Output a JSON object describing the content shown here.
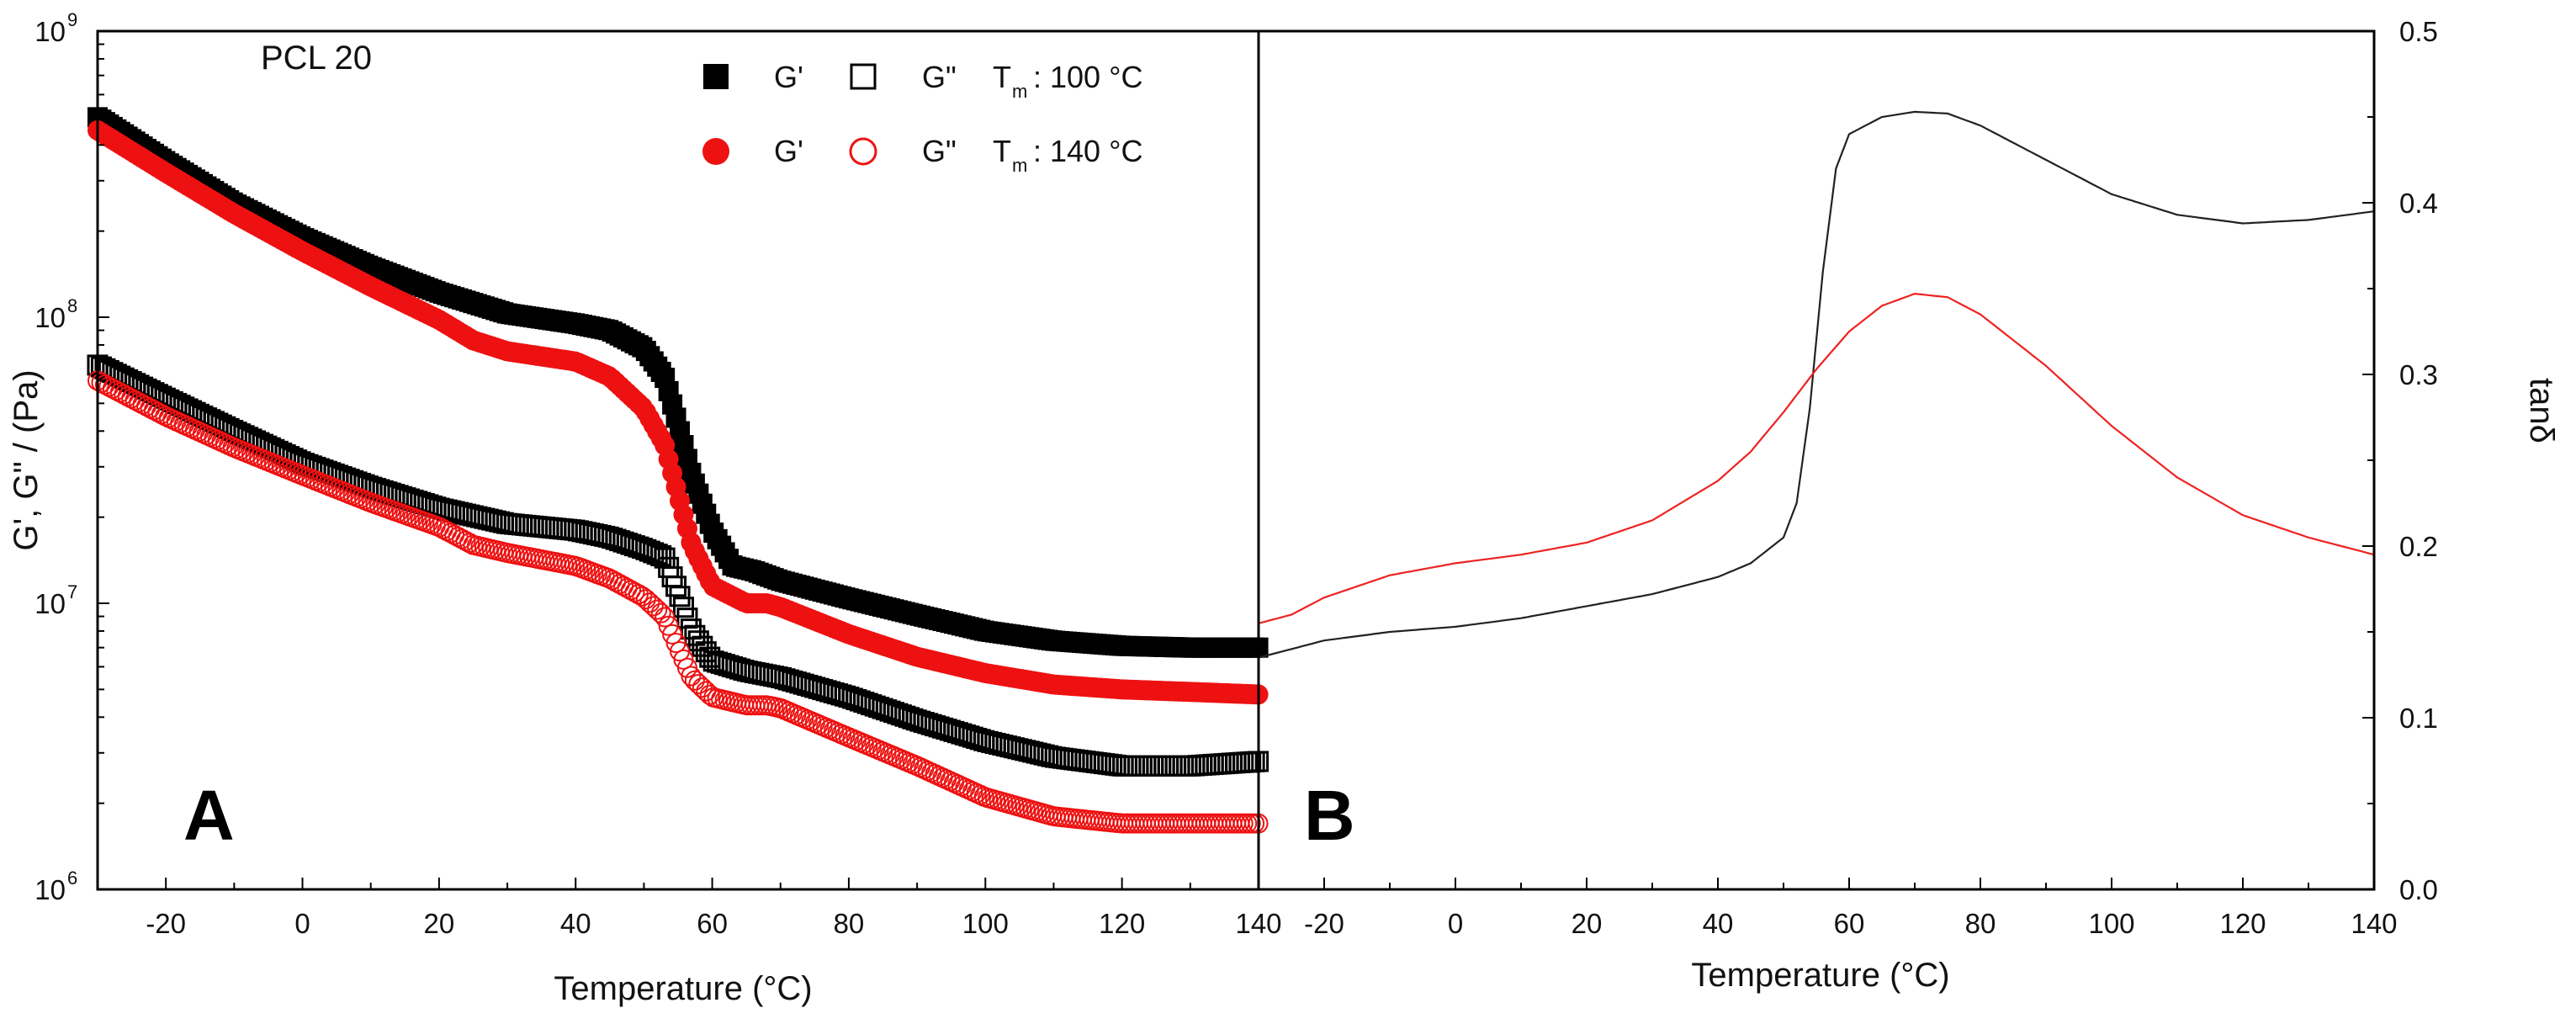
{
  "chart_data": [
    {
      "panel": "A",
      "type": "scatter",
      "annotation": "PCL 20",
      "panel_label": "A",
      "xlabel": "Temperature (°C)",
      "ylabel": "G', G\" / (Pa)",
      "yscale": "log",
      "xlim": [
        -30,
        140
      ],
      "ylim": [
        1000000,
        1000000000
      ],
      "x_ticks": [
        -20,
        0,
        20,
        40,
        60,
        80,
        100,
        120,
        140
      ],
      "x_tick_labels": [
        "-20",
        "0",
        "20",
        "40",
        "60",
        "80",
        "100",
        "120",
        "140"
      ],
      "y_ticks": [
        1000000,
        10000000,
        100000000,
        1000000000
      ],
      "y_tick_labels": [
        {
          "base": "10",
          "exp": "6"
        },
        {
          "base": "10",
          "exp": "7"
        },
        {
          "base": "10",
          "exp": "8"
        },
        {
          "base": "10",
          "exp": "9"
        }
      ],
      "legend": {
        "rows": [
          {
            "g1": "G'",
            "g2": "G\"",
            "tm_prefix": "T",
            "tm_sub": "m",
            "tm_value": ": 100 °C",
            "color": "#000000",
            "marker": "square"
          },
          {
            "g1": "G'",
            "g2": "G\"",
            "tm_prefix": "T",
            "tm_sub": "m",
            "tm_value": ": 140 °C",
            "color": "#ee1111",
            "marker": "circle"
          }
        ]
      },
      "series": [
        {
          "name": "G' Tm 100 °C",
          "color": "#000000",
          "marker": "square",
          "filled": true,
          "points": [
            [
              -30,
              500000000
            ],
            [
              -20,
              350000000
            ],
            [
              -10,
              250000000
            ],
            [
              0,
              190000000
            ],
            [
              10,
              150000000
            ],
            [
              20,
              122000000
            ],
            [
              30,
              103000000
            ],
            [
              40,
              95000000
            ],
            [
              45,
              90000000
            ],
            [
              50,
              78000000
            ],
            [
              53,
              62000000
            ],
            [
              55,
              42000000
            ],
            [
              57,
              28000000
            ],
            [
              60,
              18000000
            ],
            [
              63,
              13500000
            ],
            [
              66,
              13000000
            ],
            [
              70,
              12000000
            ],
            [
              80,
              10400000
            ],
            [
              90,
              9100000
            ],
            [
              100,
              8000000
            ],
            [
              110,
              7400000
            ],
            [
              120,
              7100000
            ],
            [
              130,
              7000000
            ],
            [
              140,
              7000000
            ]
          ]
        },
        {
          "name": "G\" Tm 100 °C",
          "color": "#000000",
          "marker": "square",
          "filled": false,
          "points": [
            [
              -30,
              68000000
            ],
            [
              -20,
              52000000
            ],
            [
              -10,
              40000000
            ],
            [
              0,
              31000000
            ],
            [
              10,
              25500000
            ],
            [
              20,
              21500000
            ],
            [
              30,
              19000000
            ],
            [
              40,
              18000000
            ],
            [
              45,
              17000000
            ],
            [
              50,
              15500000
            ],
            [
              53,
              14500000
            ],
            [
              55,
              11000000
            ],
            [
              57,
              8000000
            ],
            [
              60,
              6300000
            ],
            [
              65,
              5800000
            ],
            [
              70,
              5500000
            ],
            [
              80,
              4700000
            ],
            [
              90,
              3900000
            ],
            [
              100,
              3300000
            ],
            [
              110,
              2900000
            ],
            [
              120,
              2700000
            ],
            [
              130,
              2700000
            ],
            [
              140,
              2800000
            ]
          ]
        },
        {
          "name": "G' Tm 140 °C",
          "color": "#ee1111",
          "marker": "circle",
          "filled": true,
          "points": [
            [
              -30,
              450000000
            ],
            [
              -20,
              320000000
            ],
            [
              -10,
              230000000
            ],
            [
              0,
              170000000
            ],
            [
              10,
              128000000
            ],
            [
              20,
              98000000
            ],
            [
              25,
              83000000
            ],
            [
              30,
              76000000
            ],
            [
              40,
              70000000
            ],
            [
              45,
              62000000
            ],
            [
              50,
              48000000
            ],
            [
              53,
              36000000
            ],
            [
              55,
              24000000
            ],
            [
              57,
              16000000
            ],
            [
              60,
              11500000
            ],
            [
              65,
              10000000
            ],
            [
              68,
              10000000
            ],
            [
              70,
              9700000
            ],
            [
              80,
              7800000
            ],
            [
              90,
              6500000
            ],
            [
              100,
              5700000
            ],
            [
              110,
              5200000
            ],
            [
              120,
              5000000
            ],
            [
              130,
              4900000
            ],
            [
              140,
              4800000
            ]
          ]
        },
        {
          "name": "G\" Tm 140 °C",
          "color": "#ee1111",
          "marker": "circle",
          "filled": false,
          "points": [
            [
              -30,
              60000000
            ],
            [
              -20,
              45000000
            ],
            [
              -10,
              35000000
            ],
            [
              0,
              28000000
            ],
            [
              10,
              22500000
            ],
            [
              20,
              18500000
            ],
            [
              25,
              16000000
            ],
            [
              30,
              15000000
            ],
            [
              40,
              13500000
            ],
            [
              45,
              12200000
            ],
            [
              50,
              10500000
            ],
            [
              53,
              9000000
            ],
            [
              55,
              7000000
            ],
            [
              57,
              5500000
            ],
            [
              60,
              4700000
            ],
            [
              65,
              4400000
            ],
            [
              68,
              4400000
            ],
            [
              70,
              4300000
            ],
            [
              80,
              3400000
            ],
            [
              90,
              2700000
            ],
            [
              100,
              2100000
            ],
            [
              110,
              1800000
            ],
            [
              120,
              1700000
            ],
            [
              130,
              1700000
            ],
            [
              140,
              1700000
            ]
          ]
        }
      ]
    },
    {
      "panel": "B",
      "type": "line",
      "panel_label": "B",
      "xlabel": "Temperature (°C)",
      "ylabel": "tanδ",
      "xlim": [
        -30,
        140
      ],
      "ylim": [
        0.0,
        0.5
      ],
      "x_ticks": [
        -20,
        0,
        20,
        40,
        60,
        80,
        100,
        120,
        140
      ],
      "x_tick_labels": [
        "-20",
        "0",
        "20",
        "40",
        "60",
        "80",
        "100",
        "120",
        "140"
      ],
      "y_ticks": [
        0.0,
        0.1,
        0.2,
        0.3,
        0.4,
        0.5
      ],
      "y_tick_labels": [
        "0.0",
        "0.1",
        "0.2",
        "0.3",
        "0.4",
        "0.5"
      ],
      "series": [
        {
          "name": "Tm 100 °C",
          "color": "#222222",
          "points": [
            [
              -30,
              0.135
            ],
            [
              -20,
              0.145
            ],
            [
              -10,
              0.15
            ],
            [
              0,
              0.153
            ],
            [
              10,
              0.158
            ],
            [
              20,
              0.165
            ],
            [
              30,
              0.172
            ],
            [
              40,
              0.182
            ],
            [
              45,
              0.19
            ],
            [
              50,
              0.205
            ],
            [
              52,
              0.225
            ],
            [
              54,
              0.28
            ],
            [
              56,
              0.36
            ],
            [
              58,
              0.42
            ],
            [
              60,
              0.44
            ],
            [
              65,
              0.45
            ],
            [
              70,
              0.453
            ],
            [
              75,
              0.452
            ],
            [
              80,
              0.445
            ],
            [
              90,
              0.425
            ],
            [
              100,
              0.405
            ],
            [
              110,
              0.393
            ],
            [
              120,
              0.388
            ],
            [
              130,
              0.39
            ],
            [
              140,
              0.395
            ]
          ]
        },
        {
          "name": "Tm 140 °C",
          "color": "#ee2222",
          "points": [
            [
              -30,
              0.155
            ],
            [
              -25,
              0.16
            ],
            [
              -20,
              0.17
            ],
            [
              -10,
              0.183
            ],
            [
              0,
              0.19
            ],
            [
              10,
              0.195
            ],
            [
              20,
              0.202
            ],
            [
              30,
              0.215
            ],
            [
              40,
              0.238
            ],
            [
              45,
              0.255
            ],
            [
              50,
              0.278
            ],
            [
              55,
              0.303
            ],
            [
              60,
              0.325
            ],
            [
              65,
              0.34
            ],
            [
              70,
              0.347
            ],
            [
              75,
              0.345
            ],
            [
              80,
              0.335
            ],
            [
              90,
              0.305
            ],
            [
              100,
              0.27
            ],
            [
              110,
              0.24
            ],
            [
              120,
              0.218
            ],
            [
              130,
              0.205
            ],
            [
              140,
              0.195
            ]
          ]
        }
      ]
    }
  ]
}
